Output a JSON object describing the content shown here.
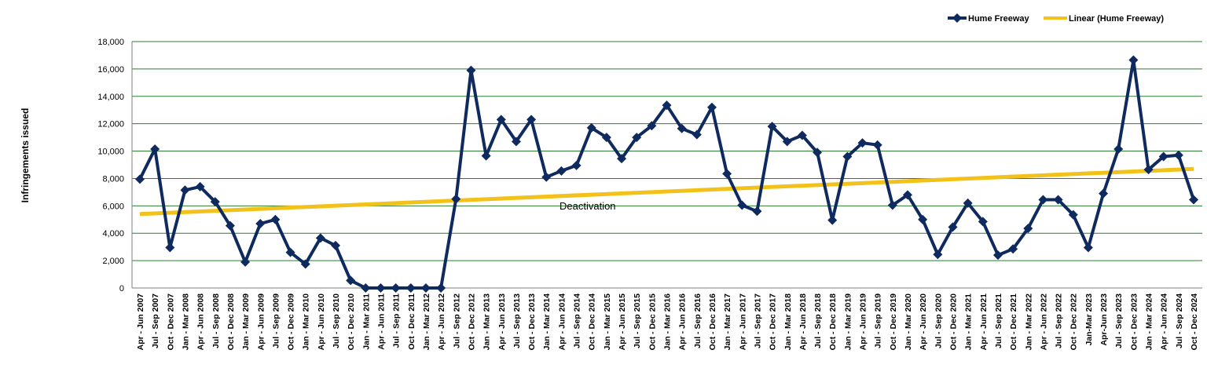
{
  "chart_data": {
    "type": "line",
    "title": "",
    "xlabel": "",
    "ylabel": "Infringements issued",
    "ylim": [
      0,
      18000
    ],
    "yticks": [
      0,
      2000,
      4000,
      6000,
      8000,
      10000,
      12000,
      14000,
      16000,
      18000
    ],
    "ytick_labels": [
      "0",
      "2,000",
      "4,000",
      "6,000",
      "8,000",
      "10,000",
      "12,000",
      "14,000",
      "16,000",
      "18,000"
    ],
    "grid": true,
    "legend_position": "top-right",
    "categories": [
      "Apr - Jun 2007",
      "Jul - Sep 2007",
      "Oct - Dec 2007",
      "Jan - Mar 2008",
      "Apr - Jun 2008",
      "Jul - Sep 2008",
      "Oct - Dec 2008",
      "Jan - Mar 2009",
      "Apr - Jun 2009",
      "Jul - Sep 2009",
      "Oct - Dec 2009",
      "Jan - Mar 2010",
      "Apr - Jun 2010",
      "Jul - Sep 2010",
      "Oct - Dec 2010",
      "Jan - Mar 2011",
      "Apr - Jun 2011",
      "Jul - Sep 2011",
      "Oct - Dec 2011",
      "Jan - Mar 2012",
      "Apr - Jun 2012",
      "Jul - Sep 2012",
      "Oct - Dec 2012",
      "Jan - Mar 2013",
      "Apr - Jun 2013",
      "Jul - Sep 2013",
      "Oct - Dec 2013",
      "Jan - Mar 2014",
      "Apr - Jun 2014",
      "Jul - Sep 2014",
      "Oct - Dec 2014",
      "Jan - Mar 2015",
      "Apr - Jun 2015",
      "Jul - Sep 2015",
      "Oct - Dec 2015",
      "Jan - Mar 2016",
      "Apr - Jun 2016",
      "Jul - Sep 2016",
      "Oct - Dec 2016",
      "Jan - Mar 2017",
      "Apr - Jun 2017",
      "Jul - Sep 2017",
      "Oct - Dec 2017",
      "Jan - Mar 2018",
      "Apr - Jun 2018",
      "Jul - Sep 2018",
      "Oct - Dec 2018",
      "Jan - Mar 2019",
      "Apr - Jun 2019",
      "Jul - Sep 2019",
      "Oct - Dec 2019",
      "Jan - Mar 2020",
      "Apr - Jun 2020",
      "Jul - Sep 2020",
      "Oct - Dec 2020",
      "Jan - Mar 2021",
      "Apr - Jun 2021",
      "Jul - Sep 2021",
      "Oct - Dec 2021",
      "Jan - Mar 2022",
      "Apr - Jun 2022",
      "Jul - Sep 2022",
      "Oct - Dec 2022",
      "Jan-Mar 2023",
      "Apr-Jun 2023",
      "Jul - Sep 2023",
      "Oct - Dec 2023",
      "Jan - Mar 2024",
      "Apr - Jun 2024",
      "Jul - Sep 2024",
      "Oct - Dec 2024"
    ],
    "series": [
      {
        "name": "Hume Freeway",
        "color": "#0f2a5e",
        "marker": "diamond",
        "values": [
          7950,
          10150,
          2950,
          7150,
          7400,
          6300,
          4550,
          1900,
          4700,
          5000,
          2600,
          1750,
          3650,
          3100,
          550,
          0,
          0,
          0,
          0,
          0,
          0,
          6500,
          15900,
          9650,
          12300,
          10700,
          12300,
          8100,
          8550,
          8950,
          11700,
          11000,
          9450,
          11000,
          11850,
          13350,
          11650,
          11200,
          13200,
          8350,
          6050,
          5600,
          11800,
          10700,
          11150,
          9900,
          4950,
          9600,
          10600,
          10450,
          6050,
          6800,
          5000,
          2450,
          4450,
          6200,
          4850,
          2400,
          2850,
          4350,
          6450,
          6450,
          5350,
          2950,
          6900,
          10150,
          16650,
          8650,
          9600,
          9700,
          6450
        ]
      },
      {
        "name": "Linear (Hume Freeway)",
        "color": "#f2c21b",
        "kind": "trendline",
        "start": 5400,
        "end": 8700
      }
    ],
    "annotations": [
      "Deactivation"
    ]
  }
}
